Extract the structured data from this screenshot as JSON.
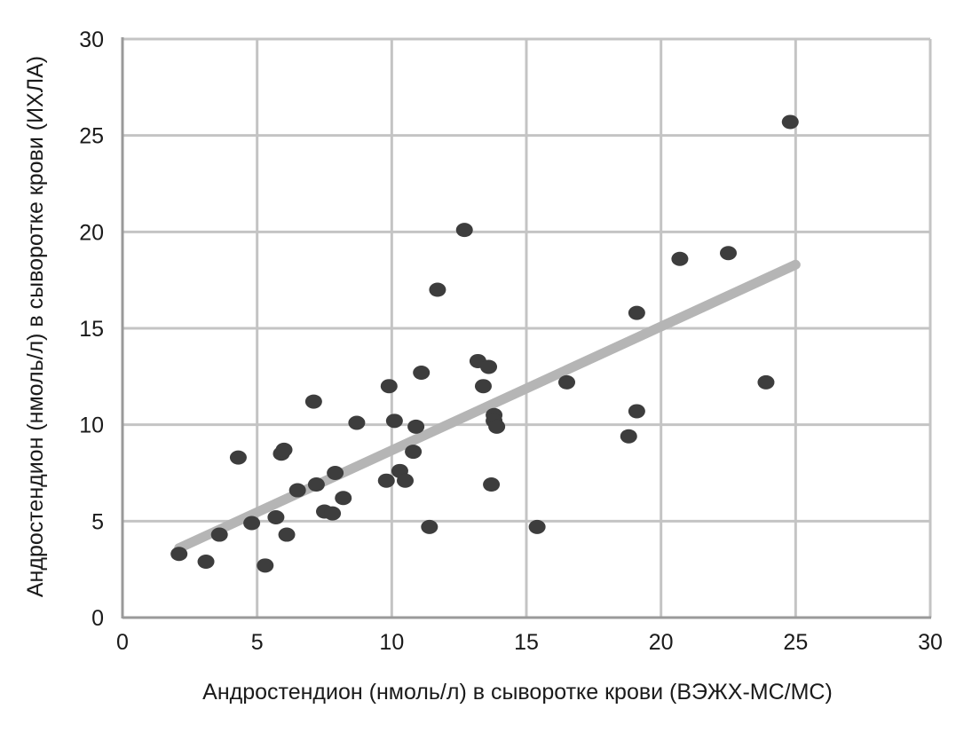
{
  "chart_data": {
    "type": "scatter",
    "title": "",
    "xlabel": "Андростендион (нмоль/л) в сыворотке крови (ВЭЖХ-МС/МС)",
    "ylabel": "Андростендион (нмоль/л) в сыворотке крови (ИХЛА)",
    "xlim": [
      0,
      30
    ],
    "ylim": [
      0,
      30
    ],
    "x_ticks": [
      0,
      5,
      10,
      15,
      20,
      25,
      30
    ],
    "y_ticks": [
      0,
      5,
      10,
      15,
      20,
      25,
      30
    ],
    "x_tick_labels": [
      "0",
      "5",
      "10",
      "15",
      "20",
      "25",
      "30"
    ],
    "y_tick_labels": [
      "0",
      "5",
      "10",
      "15",
      "20",
      "25",
      "30"
    ],
    "grid": true,
    "legend": "none",
    "colors": {
      "points": "#3d3d3d",
      "trendline": "#b5b5b5",
      "grid": "#c4c4c4",
      "axis": "#9a9a9a"
    },
    "points": [
      {
        "x": 2.1,
        "y": 3.3
      },
      {
        "x": 3.1,
        "y": 2.9
      },
      {
        "x": 3.6,
        "y": 4.3
      },
      {
        "x": 4.3,
        "y": 8.3
      },
      {
        "x": 4.8,
        "y": 4.9
      },
      {
        "x": 5.3,
        "y": 2.7
      },
      {
        "x": 5.7,
        "y": 5.2
      },
      {
        "x": 5.9,
        "y": 8.5
      },
      {
        "x": 6.0,
        "y": 8.7
      },
      {
        "x": 6.1,
        "y": 4.3
      },
      {
        "x": 6.5,
        "y": 6.6
      },
      {
        "x": 7.1,
        "y": 11.2
      },
      {
        "x": 7.2,
        "y": 6.9
      },
      {
        "x": 7.5,
        "y": 5.5
      },
      {
        "x": 7.8,
        "y": 5.4
      },
      {
        "x": 7.9,
        "y": 7.5
      },
      {
        "x": 8.2,
        "y": 6.2
      },
      {
        "x": 8.7,
        "y": 10.1
      },
      {
        "x": 9.8,
        "y": 7.1
      },
      {
        "x": 9.9,
        "y": 12.0
      },
      {
        "x": 10.1,
        "y": 10.2
      },
      {
        "x": 10.3,
        "y": 7.6
      },
      {
        "x": 10.5,
        "y": 7.1
      },
      {
        "x": 10.8,
        "y": 8.6
      },
      {
        "x": 10.9,
        "y": 9.9
      },
      {
        "x": 11.1,
        "y": 12.7
      },
      {
        "x": 11.4,
        "y": 4.7
      },
      {
        "x": 11.7,
        "y": 17.0
      },
      {
        "x": 12.7,
        "y": 20.1
      },
      {
        "x": 13.2,
        "y": 13.3
      },
      {
        "x": 13.4,
        "y": 12.0
      },
      {
        "x": 13.6,
        "y": 13.0
      },
      {
        "x": 13.7,
        "y": 6.9
      },
      {
        "x": 13.8,
        "y": 10.5
      },
      {
        "x": 13.8,
        "y": 10.2
      },
      {
        "x": 13.9,
        "y": 9.9
      },
      {
        "x": 15.4,
        "y": 4.7
      },
      {
        "x": 16.5,
        "y": 12.2
      },
      {
        "x": 18.8,
        "y": 9.4
      },
      {
        "x": 19.1,
        "y": 10.7
      },
      {
        "x": 19.1,
        "y": 15.8
      },
      {
        "x": 20.7,
        "y": 18.6
      },
      {
        "x": 22.5,
        "y": 18.9
      },
      {
        "x": 23.9,
        "y": 12.2
      },
      {
        "x": 24.8,
        "y": 25.7
      }
    ],
    "trendline": {
      "x": [
        2.1,
        25.0
      ],
      "y": [
        3.6,
        18.3
      ]
    }
  }
}
